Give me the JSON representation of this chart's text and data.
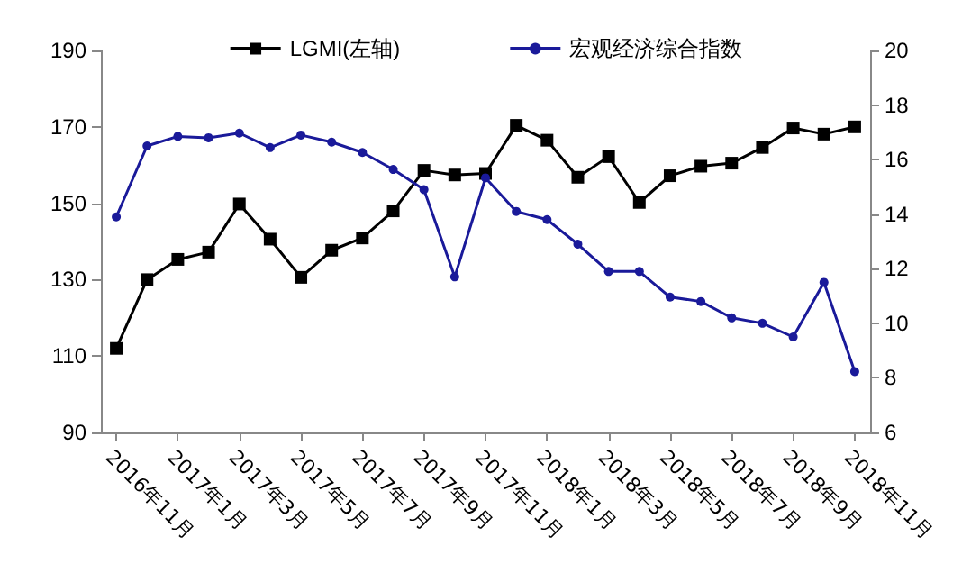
{
  "chart_data": {
    "type": "line",
    "categories": [
      "2016年11月",
      null,
      "2017年1月",
      null,
      "2017年3月",
      null,
      "2017年5月",
      null,
      "2017年7月",
      null,
      "2017年9月",
      null,
      "2017年11月",
      null,
      "2018年1月",
      null,
      "2018年3月",
      null,
      "2018年5月",
      null,
      "2018年7月",
      null,
      "2018年9月",
      null,
      "2018年11月"
    ],
    "series": [
      {
        "name": "LGMI(左轴)",
        "color": "#000000",
        "marker": "square",
        "values": [
          112,
          130,
          135.3,
          137.2,
          149.8,
          140.6,
          130.6,
          137.7,
          140.9,
          148,
          158.6,
          157.4,
          157.8,
          170.4,
          166.5,
          156.8,
          162.2,
          150.2,
          157.2,
          159.7,
          160.5,
          164.6,
          169.7,
          168.1,
          170
        ]
      },
      {
        "name": "宏观经济综合指数",
        "color": "#1a1a9a",
        "marker": "circle",
        "axis": "y2",
        "values": [
          13.9,
          16.5,
          16.85,
          16.8,
          16.97,
          16.44,
          16.9,
          16.64,
          16.26,
          15.64,
          14.9,
          11.7,
          15.33,
          14.1,
          13.8,
          12.9,
          11.9,
          11.9,
          10.96,
          10.8,
          10.2,
          10.0,
          9.5,
          11.5,
          8.23
        ]
      }
    ],
    "ylim": [
      90,
      190
    ],
    "yticks": [
      90,
      110,
      130,
      150,
      170,
      190
    ],
    "y2lim": [
      6,
      20
    ],
    "y2ticks": [
      6,
      8,
      10,
      12,
      14,
      16,
      18,
      20
    ],
    "legend": "top",
    "grid": false
  }
}
